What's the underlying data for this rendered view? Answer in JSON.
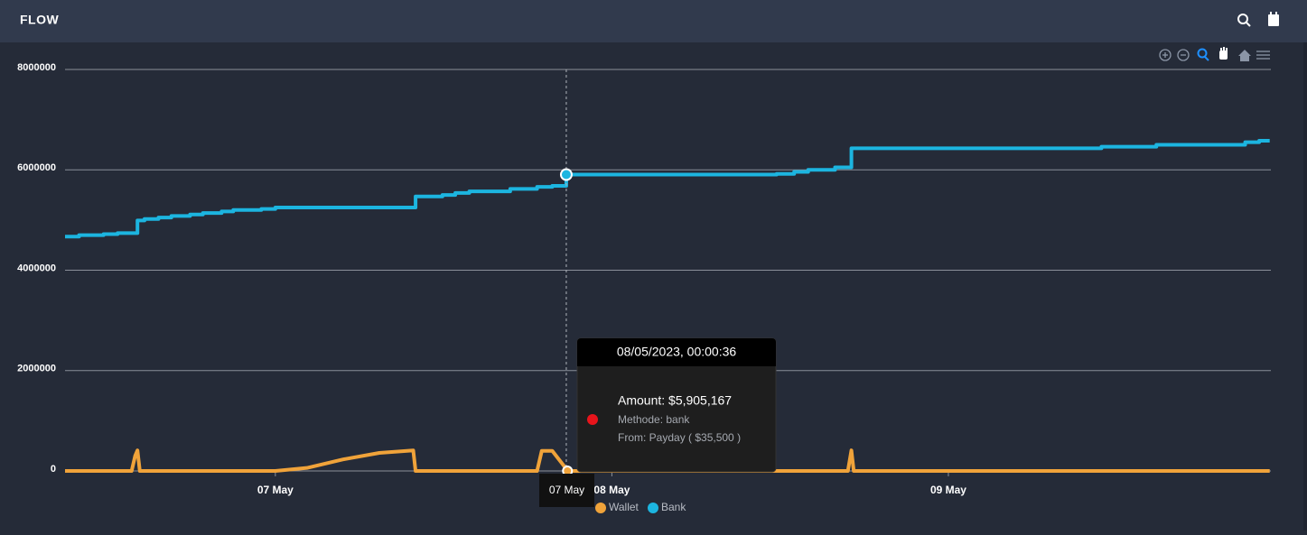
{
  "header": {
    "title": "FLOW"
  },
  "chart_data": {
    "type": "line",
    "xlim": [
      "2023-05-06T09:00",
      "2023-05-09T23:00"
    ],
    "xticks": [
      {
        "value": "2023-05-07T00:00",
        "label": "07 May"
      },
      {
        "value": "2023-05-08T00:00",
        "label": "08 May"
      },
      {
        "value": "2023-05-09T00:00",
        "label": "09 May"
      }
    ],
    "ylim": [
      0,
      8000000
    ],
    "yticks": [
      0,
      2000000,
      4000000,
      6000000,
      8000000
    ],
    "grid": true,
    "series": [
      {
        "name": "Wallet",
        "color": "#f0a33a",
        "curve": "linear",
        "x": [
          "2023-05-06T09:00",
          "2023-05-06T13:45",
          "2023-05-06T14:00",
          "2023-05-06T14:10",
          "2023-05-06T14:20",
          "2023-05-07T00:00",
          "2023-05-07T02:15",
          "2023-05-07T04:50",
          "2023-05-07T07:25",
          "2023-05-07T09:50",
          "2023-05-07T10:00",
          "2023-05-07T18:40",
          "2023-05-07T19:00",
          "2023-05-07T19:45",
          "2023-05-07T20:35",
          "2023-05-07T20:50",
          "2023-05-08T16:50",
          "2023-05-08T17:05",
          "2023-05-08T17:15",
          "2023-05-09T22:55"
        ],
        "values": [
          0,
          0,
          300000,
          410000,
          0,
          0,
          60000,
          230000,
          360000,
          410000,
          0,
          0,
          400000,
          400000,
          100000,
          0,
          0,
          410000,
          0,
          0
        ]
      },
      {
        "name": "Bank",
        "color": "#1cb5e0",
        "curve": "stepAfter",
        "x": [
          "2023-05-06T09:00",
          "2023-05-06T10:00",
          "2023-05-06T11:45",
          "2023-05-06T12:45",
          "2023-05-06T14:10",
          "2023-05-06T14:40",
          "2023-05-06T15:40",
          "2023-05-06T16:35",
          "2023-05-06T17:55",
          "2023-05-06T18:50",
          "2023-05-06T20:10",
          "2023-05-06T21:00",
          "2023-05-06T23:00",
          "2023-05-07T00:00",
          "2023-05-07T10:00",
          "2023-05-07T11:55",
          "2023-05-07T12:50",
          "2023-05-07T13:50",
          "2023-05-07T16:45",
          "2023-05-07T18:40",
          "2023-05-07T19:45",
          "2023-05-07T20:45",
          "2023-05-08T11:45",
          "2023-05-08T13:00",
          "2023-05-08T14:00",
          "2023-05-08T15:55",
          "2023-05-08T17:05",
          "2023-05-09T10:55",
          "2023-05-09T14:50",
          "2023-05-09T21:10",
          "2023-05-09T22:10",
          "2023-05-09T22:55"
        ],
        "values": [
          4670000,
          4700000,
          4720000,
          4740000,
          4990000,
          5020000,
          5050000,
          5080000,
          5110000,
          5140000,
          5170000,
          5200000,
          5220000,
          5250000,
          5470000,
          5500000,
          5540000,
          5570000,
          5620000,
          5660000,
          5680000,
          5905167,
          5920000,
          5960000,
          6000000,
          6050000,
          6430000,
          6460000,
          6500000,
          6550000,
          6580000,
          6580000
        ]
      }
    ],
    "tooltip": {
      "title": "08/05/2023, 00:00:36",
      "x_label": "07 May",
      "lines": [
        "Amount: $5,905,167",
        "Methode: bank",
        "From: Payday ( $35,500 )"
      ]
    }
  }
}
